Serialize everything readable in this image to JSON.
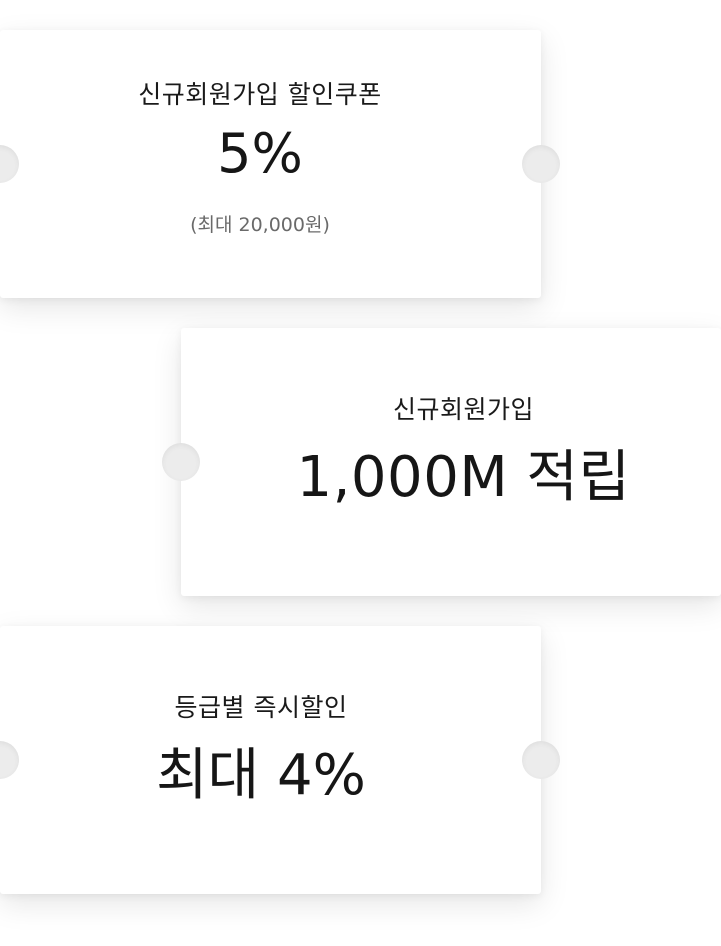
{
  "coupons": [
    {
      "subtitle": "신규회원가입 할인쿠폰",
      "headline": "5%",
      "note": "(최대 20,000원)"
    },
    {
      "subtitle": "신규회원가입",
      "headline": "1,000M 적립"
    },
    {
      "subtitle": "등급별 즉시할인",
      "headline": "최대 4%"
    }
  ],
  "colors": {
    "card_background": "#ffffff",
    "notch": "#ececec",
    "text_primary": "#1a1a1a",
    "text_secondary": "#6a6a6a"
  }
}
